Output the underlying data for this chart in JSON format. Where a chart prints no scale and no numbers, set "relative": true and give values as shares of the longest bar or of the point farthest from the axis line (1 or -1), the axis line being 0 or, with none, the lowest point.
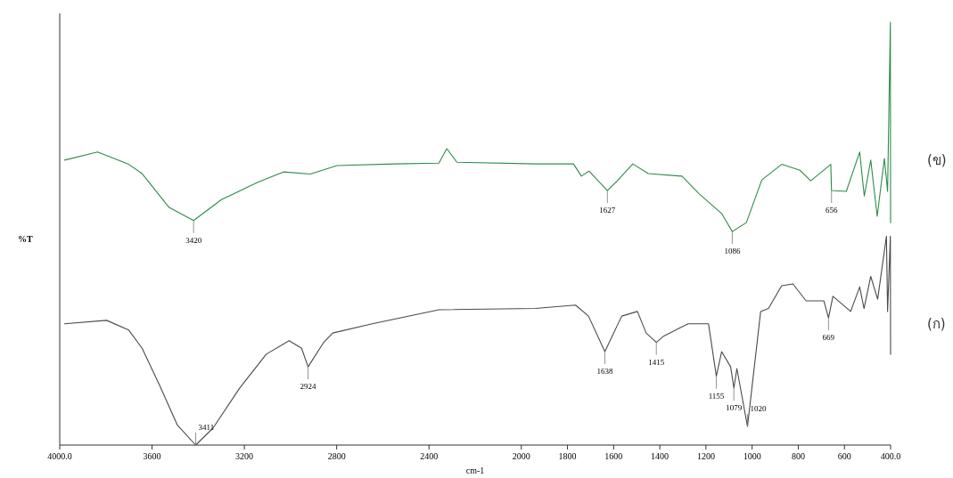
{
  "chart_data": {
    "type": "line",
    "relative": true,
    "xlabel": "cm-1",
    "ylabel": "%T",
    "xlim": [
      4000,
      400
    ],
    "xticks": [
      {
        "value": 4000,
        "label": "4000.0"
      },
      3600,
      3200,
      2800,
      2400,
      2000,
      1800,
      1600,
      1400,
      1200,
      1000,
      800,
      600,
      {
        "value": 400,
        "label": "400.0"
      }
    ],
    "grid": false,
    "line_style": "solid",
    "series": [
      {
        "name": "(ข)",
        "color": "#2e8b4a",
        "x": [
          3979,
          3836,
          3701,
          3643,
          3526,
          3420,
          3298,
          3144,
          3031,
          2914,
          2798,
          2548,
          2357,
          2323,
          2279,
          1939,
          1774,
          1740,
          1707,
          1627,
          1584,
          1517,
          1450,
          1304,
          1229,
          1131,
          1086,
          1025,
          958,
          872,
          793,
          746,
          659,
          656,
          592,
          534,
          514,
          486,
          458,
          427,
          413,
          401,
          400
        ],
        "values": [
          0.674,
          0.693,
          0.664,
          0.642,
          0.562,
          0.531,
          0.581,
          0.621,
          0.646,
          0.641,
          0.661,
          0.665,
          0.667,
          0.701,
          0.669,
          0.665,
          0.665,
          0.636,
          0.648,
          0.602,
          0.625,
          0.665,
          0.642,
          0.636,
          0.594,
          0.547,
          0.505,
          0.526,
          0.627,
          0.664,
          0.65,
          0.625,
          0.664,
          0.602,
          0.6,
          0.693,
          0.589,
          0.674,
          0.541,
          0.678,
          0.6,
          1.0,
          0.526
        ]
      },
      {
        "name": "(ก)",
        "color": "#4a4a4a",
        "x": [
          3979,
          3797,
          3701,
          3643,
          3567,
          3490,
          3411,
          3336,
          3220,
          3105,
          3006,
          2952,
          2924,
          2856,
          2817,
          2646,
          2357,
          1939,
          1765,
          1709,
          1638,
          1565,
          1497,
          1459,
          1415,
          1382,
          1277,
          1189,
          1155,
          1132,
          1093,
          1079,
          1066,
          1020,
          963,
          929,
          872,
          823,
          766,
          689,
          669,
          650,
          573,
          534,
          515,
          486,
          456,
          418,
          413,
          401,
          400
        ],
        "values": [
          0.287,
          0.295,
          0.272,
          0.229,
          0.141,
          0.047,
          0,
          0.04,
          0.135,
          0.215,
          0.247,
          0.229,
          0.185,
          0.243,
          0.265,
          0.287,
          0.32,
          0.323,
          0.331,
          0.305,
          0.221,
          0.305,
          0.316,
          0.265,
          0.243,
          0.258,
          0.287,
          0.287,
          0.163,
          0.221,
          0.185,
          0.135,
          0.181,
          0.044,
          0.316,
          0.323,
          0.377,
          0.381,
          0.341,
          0.341,
          0.301,
          0.352,
          0.316,
          0.374,
          0.323,
          0.399,
          0.345,
          0.494,
          0.316,
          0.494,
          0.215
        ]
      }
    ],
    "annotations": [
      {
        "text": "3420",
        "x": 3420,
        "y": 0.531
      },
      {
        "text": "1627",
        "x": 1627,
        "y": 0.602
      },
      {
        "text": "1086",
        "x": 1086,
        "y": 0.505
      },
      {
        "text": "656",
        "x": 656,
        "y": 0.602
      },
      {
        "text": "3411",
        "x": 3411,
        "y": 0
      },
      {
        "text": "2924",
        "x": 2924,
        "y": 0.185
      },
      {
        "text": "1638",
        "x": 1638,
        "y": 0.221
      },
      {
        "text": "1415",
        "x": 1415,
        "y": 0.243
      },
      {
        "text": "1155",
        "x": 1155,
        "y": 0.163
      },
      {
        "text": "1079",
        "x": 1079,
        "y": 0.135
      },
      {
        "text": "1020",
        "x": 1020,
        "y": 0.044
      },
      {
        "text": "669",
        "x": 669,
        "y": 0.301
      }
    ]
  }
}
